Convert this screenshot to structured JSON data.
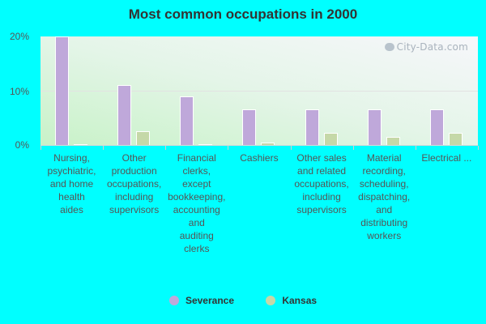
{
  "chart_data": {
    "type": "bar",
    "title": "Most common occupations in 2000",
    "xlabel": "",
    "ylabel": "",
    "ylim": [
      0,
      20
    ],
    "yticks": [
      "0%",
      "10%",
      "20%"
    ],
    "grid": true,
    "legend_position": "bottom",
    "categories": [
      "Nursing, psychiatric, and home health aides",
      "Other production occupations, including supervisors",
      "Financial clerks, except bookkeeping, accounting and auditing clerks",
      "Cashiers",
      "Other sales and related occupations, including supervisors",
      "Material recording, scheduling, dispatching, and distributing workers",
      "Electrical ..."
    ],
    "series": [
      {
        "name": "Severance",
        "color": "#BFA8DA",
        "values": [
          20.1,
          11.1,
          8.9,
          6.6,
          6.6,
          6.6,
          6.6
        ]
      },
      {
        "name": "Kansas",
        "color": "#C5D8A8",
        "values": [
          0.2,
          2.6,
          0.2,
          0.5,
          2.2,
          1.5,
          2.2
        ]
      }
    ],
    "watermark": "City-Data.com"
  }
}
